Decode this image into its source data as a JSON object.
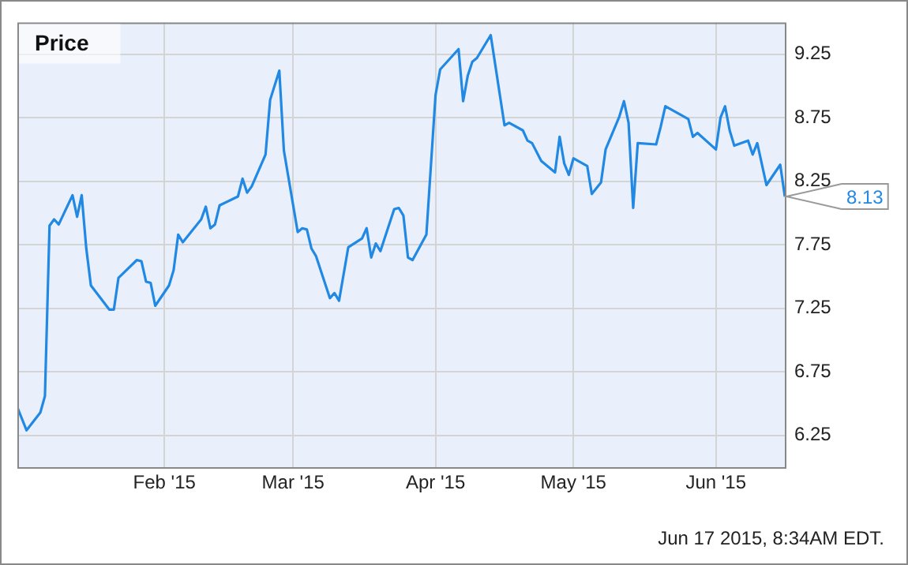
{
  "chart_data": {
    "type": "line",
    "title": "Price",
    "x": [
      "2014-12-31",
      "2015-01-02",
      "2015-01-05",
      "2015-01-06",
      "2015-01-07",
      "2015-01-08",
      "2015-01-09",
      "2015-01-12",
      "2015-01-13",
      "2015-01-14",
      "2015-01-15",
      "2015-01-16",
      "2015-01-20",
      "2015-01-21",
      "2015-01-22",
      "2015-01-26",
      "2015-01-27",
      "2015-01-28",
      "2015-01-29",
      "2015-01-30",
      "2015-02-02",
      "2015-02-03",
      "2015-02-04",
      "2015-02-05",
      "2015-02-09",
      "2015-02-10",
      "2015-02-11",
      "2015-02-12",
      "2015-02-13",
      "2015-02-17",
      "2015-02-18",
      "2015-02-19",
      "2015-02-20",
      "2015-02-23",
      "2015-02-24",
      "2015-02-26",
      "2015-02-27",
      "2015-03-02",
      "2015-03-03",
      "2015-03-04",
      "2015-03-05",
      "2015-03-06",
      "2015-03-09",
      "2015-03-10",
      "2015-03-11",
      "2015-03-13",
      "2015-03-16",
      "2015-03-17",
      "2015-03-18",
      "2015-03-19",
      "2015-03-20",
      "2015-03-23",
      "2015-03-24",
      "2015-03-25",
      "2015-03-26",
      "2015-03-27",
      "2015-03-30",
      "2015-04-01",
      "2015-04-02",
      "2015-04-06",
      "2015-04-07",
      "2015-04-08",
      "2015-04-09",
      "2015-04-10",
      "2015-04-13",
      "2015-04-16",
      "2015-04-17",
      "2015-04-20",
      "2015-04-21",
      "2015-04-22",
      "2015-04-24",
      "2015-04-27",
      "2015-04-28",
      "2015-04-29",
      "2015-04-30",
      "2015-05-01",
      "2015-05-04",
      "2015-05-05",
      "2015-05-07",
      "2015-05-08",
      "2015-05-11",
      "2015-05-12",
      "2015-05-13",
      "2015-05-14",
      "2015-05-15",
      "2015-05-19",
      "2015-05-20",
      "2015-05-21",
      "2015-05-26",
      "2015-05-27",
      "2015-05-28",
      "2015-06-01",
      "2015-06-02",
      "2015-06-03",
      "2015-06-04",
      "2015-06-05",
      "2015-06-08",
      "2015-06-09",
      "2015-06-10",
      "2015-06-12",
      "2015-06-15",
      "2015-06-16"
    ],
    "series": [
      {
        "color": "#2189e3",
        "values": [
          6.47,
          6.29,
          6.43,
          6.56,
          7.9,
          7.95,
          7.91,
          8.14,
          7.97,
          8.14,
          7.72,
          7.43,
          7.24,
          7.24,
          7.49,
          7.63,
          7.62,
          7.46,
          7.45,
          7.27,
          7.43,
          7.55,
          7.83,
          7.77,
          7.95,
          8.05,
          7.88,
          7.91,
          8.06,
          8.13,
          8.27,
          8.16,
          8.21,
          8.46,
          8.89,
          9.12,
          8.49,
          7.85,
          7.88,
          7.87,
          7.72,
          7.66,
          7.33,
          7.37,
          7.31,
          7.73,
          7.8,
          7.88,
          7.65,
          7.76,
          7.7,
          8.03,
          8.04,
          7.98,
          7.65,
          7.63,
          7.83,
          8.93,
          9.13,
          9.29,
          8.88,
          9.08,
          9.19,
          9.22,
          9.4,
          8.69,
          8.71,
          8.65,
          8.57,
          8.55,
          8.41,
          8.32,
          8.6,
          8.39,
          8.3,
          8.43,
          8.37,
          8.15,
          8.24,
          8.5,
          8.76,
          8.88,
          8.71,
          8.04,
          8.55,
          8.54,
          8.68,
          8.84,
          8.74,
          8.6,
          8.63,
          8.5,
          8.75,
          8.84,
          8.65,
          8.53,
          8.57,
          8.46,
          8.55,
          8.22,
          8.38,
          8.13
        ]
      }
    ],
    "xlim": [
      "2014-12-31",
      "2015-06-16"
    ],
    "xticks": [
      {
        "value": "2015-02-01",
        "label": "Feb '15"
      },
      {
        "value": "2015-03-01",
        "label": "Mar '15"
      },
      {
        "value": "2015-04-01",
        "label": "Apr '15"
      },
      {
        "value": "2015-05-01",
        "label": "May '15"
      },
      {
        "value": "2015-06-01",
        "label": "Jun '15"
      }
    ],
    "ylim": [
      6.0,
      9.5
    ],
    "yticks": [
      6.25,
      6.75,
      7.25,
      7.75,
      8.25,
      8.75,
      9.25
    ],
    "grid": true,
    "legend": false,
    "marker": "none",
    "line_style": "solid",
    "annotations": [
      {
        "text": "8.13",
        "x": "2015-06-16",
        "y": 8.13
      },
      "Jun 17 2015, 8:34AM EDT."
    ]
  }
}
